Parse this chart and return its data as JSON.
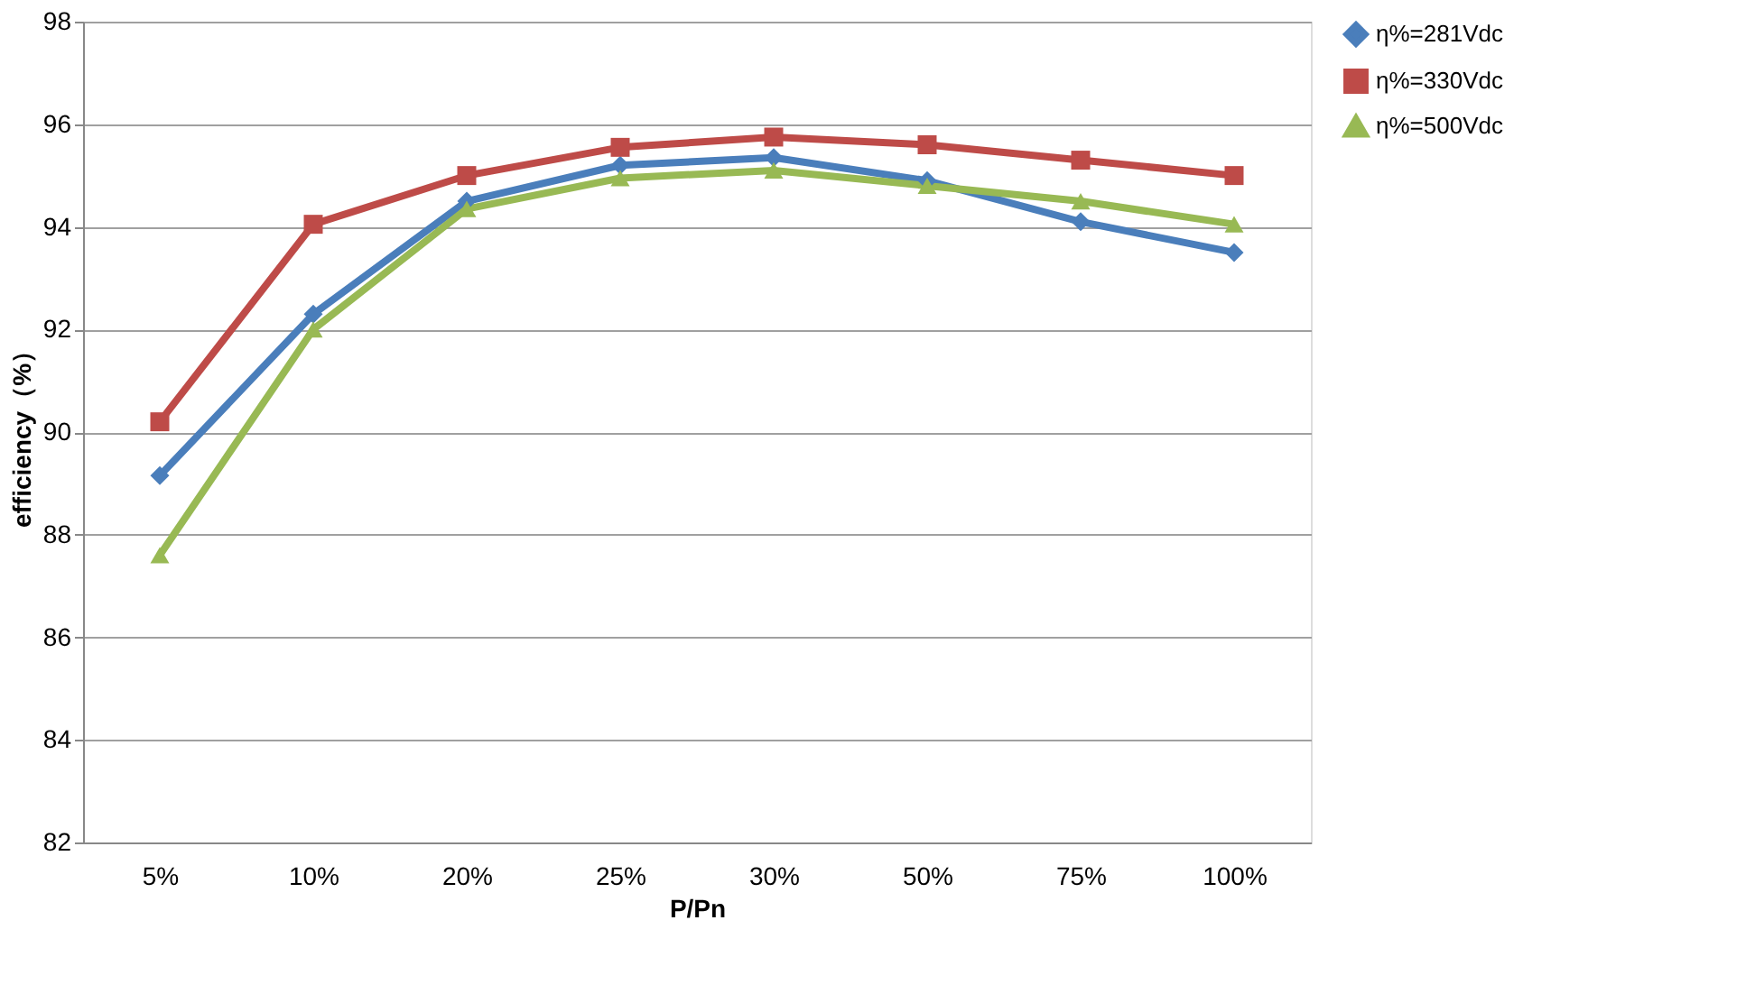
{
  "chart_data": {
    "type": "line",
    "xlabel": "P/Pn",
    "ylabel": "efficiency（%）",
    "categories": [
      "5%",
      "10%",
      "20%",
      "25%",
      "30%",
      "50%",
      "75%",
      "100%"
    ],
    "series": [
      {
        "name": "η%=281Vdc",
        "color": "#4a7ebb",
        "marker": "diamond",
        "values": [
          89.15,
          92.3,
          94.5,
          95.2,
          95.35,
          94.9,
          94.1,
          93.5
        ]
      },
      {
        "name": "η%=330Vdc",
        "color": "#be4b48",
        "marker": "square",
        "values": [
          90.2,
          94.05,
          95.0,
          95.55,
          95.75,
          95.6,
          95.3,
          95.0
        ]
      },
      {
        "name": "η%=500Vdc",
        "color": "#98b954",
        "marker": "triangle",
        "values": [
          87.6,
          92.0,
          94.35,
          94.95,
          95.1,
          94.8,
          94.5,
          94.05
        ]
      }
    ],
    "ylim": [
      82,
      98
    ],
    "yticks": [
      82,
      84,
      86,
      88,
      90,
      92,
      94,
      96,
      98
    ],
    "grid": "y",
    "legend": "right",
    "line_style": "solid"
  }
}
